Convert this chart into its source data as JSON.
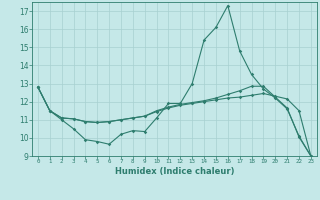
{
  "xlabel": "Humidex (Indice chaleur)",
  "background_color": "#c5e8e8",
  "line_color": "#2e7d6e",
  "grid_color": "#a8d0d0",
  "xlim": [
    -0.5,
    23.5
  ],
  "ylim": [
    9,
    17.5
  ],
  "yticks": [
    9,
    10,
    11,
    12,
    13,
    14,
    15,
    16,
    17
  ],
  "xtick_labels": [
    "0",
    "1",
    "2",
    "3",
    "4",
    "5",
    "6",
    "7",
    "8",
    "9",
    "10",
    "11",
    "12",
    "13",
    "14",
    "15",
    "16",
    "17",
    "18",
    "19",
    "20",
    "21",
    "22",
    "23"
  ],
  "line1_x": [
    0,
    1,
    2,
    3,
    4,
    5,
    6,
    7,
    8,
    9,
    10,
    11,
    12,
    13,
    14,
    15,
    16,
    17,
    18,
    19,
    20,
    21,
    22,
    23
  ],
  "line1_y": [
    12.8,
    11.5,
    11.0,
    10.5,
    9.9,
    9.8,
    9.65,
    10.2,
    10.4,
    10.35,
    11.1,
    11.9,
    11.9,
    13.0,
    15.4,
    16.1,
    17.3,
    14.8,
    13.5,
    12.7,
    12.2,
    11.6,
    10.1,
    9.0
  ],
  "line2_x": [
    0,
    1,
    2,
    3,
    4,
    5,
    6,
    7,
    8,
    9,
    10,
    11,
    12,
    13,
    14,
    15,
    16,
    17,
    18,
    19,
    20,
    21,
    22,
    23
  ],
  "line2_y": [
    12.8,
    11.5,
    11.1,
    11.05,
    10.9,
    10.85,
    10.9,
    11.0,
    11.1,
    11.2,
    11.45,
    11.65,
    11.8,
    11.9,
    12.0,
    12.1,
    12.2,
    12.25,
    12.35,
    12.45,
    12.3,
    12.15,
    11.5,
    9.0
  ],
  "line3_x": [
    0,
    1,
    2,
    3,
    4,
    5,
    6,
    7,
    8,
    9,
    10,
    11,
    12,
    13,
    14,
    15,
    16,
    17,
    18,
    19,
    20,
    21,
    22,
    23
  ],
  "line3_y": [
    12.8,
    11.5,
    11.1,
    11.05,
    10.9,
    10.85,
    10.9,
    11.0,
    11.1,
    11.2,
    11.5,
    11.7,
    11.85,
    11.95,
    12.05,
    12.2,
    12.4,
    12.6,
    12.85,
    12.85,
    12.25,
    11.65,
    10.05,
    9.0
  ]
}
